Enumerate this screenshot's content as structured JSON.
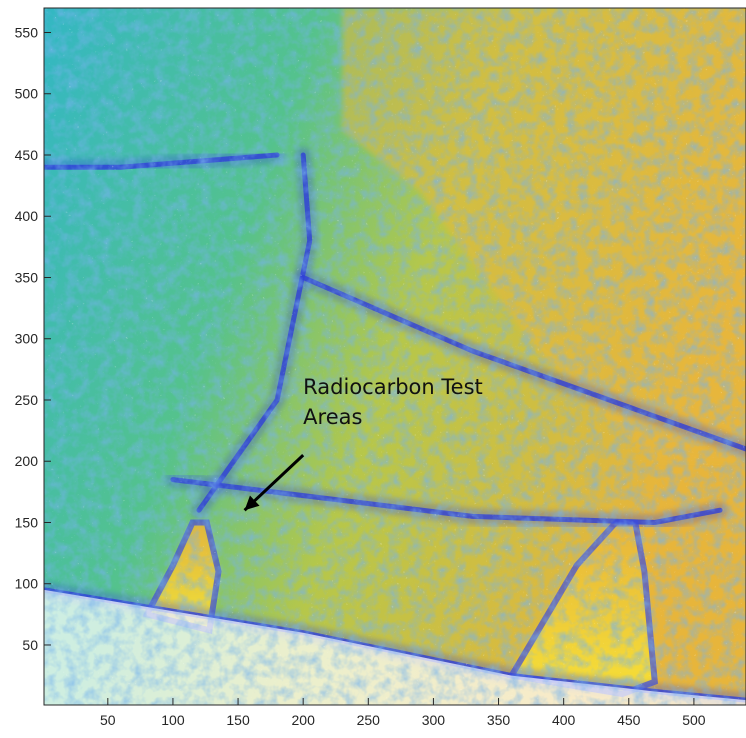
{
  "chart_data": {
    "type": "heatmap",
    "subtype": "contour",
    "title": "",
    "xlabel": "",
    "ylabel": "",
    "xlim": [
      1,
      540
    ],
    "ylim": [
      1,
      570
    ],
    "x_ticks": [
      50,
      100,
      150,
      200,
      250,
      300,
      350,
      400,
      450,
      500
    ],
    "y_ticks": [
      50,
      100,
      150,
      200,
      250,
      300,
      350,
      400,
      450,
      500,
      550
    ],
    "grid": false,
    "colormap": [
      "#3b3be0",
      "#2f7fe6",
      "#22b8c8",
      "#4cc48f",
      "#9ccc4a",
      "#e7b53b",
      "#f7e236"
    ],
    "regions": [
      {
        "name": "left-triangle",
        "level": "high",
        "polygon": [
          [
            80,
            75
          ],
          [
            128,
            62
          ],
          [
            135,
            110
          ],
          [
            126,
            150
          ],
          [
            115,
            150
          ],
          [
            100,
            115
          ]
        ]
      },
      {
        "name": "right-triangle",
        "level": "high",
        "polygon": [
          [
            360,
            25
          ],
          [
            445,
            10
          ],
          [
            470,
            20
          ],
          [
            462,
            110
          ],
          [
            455,
            150
          ],
          [
            440,
            150
          ],
          [
            410,
            115
          ]
        ]
      },
      {
        "name": "upper-right",
        "level": "medium-high",
        "polygon": [
          [
            230,
            570
          ],
          [
            540,
            570
          ],
          [
            540,
            200
          ],
          [
            470,
            200
          ],
          [
            380,
            290
          ],
          [
            290,
            420
          ],
          [
            230,
            470
          ]
        ]
      }
    ],
    "lines": [
      {
        "points": [
          [
            120,
            160
          ],
          [
            180,
            250
          ],
          [
            205,
            380
          ],
          [
            200,
            450
          ]
        ]
      },
      {
        "points": [
          [
            100,
            185
          ],
          [
            330,
            155
          ],
          [
            470,
            150
          ],
          [
            520,
            160
          ]
        ]
      },
      {
        "points": [
          [
            200,
            350
          ],
          [
            330,
            290
          ],
          [
            540,
            210
          ]
        ]
      },
      {
        "points": [
          [
            1,
            95
          ],
          [
            200,
            60
          ],
          [
            360,
            25
          ],
          [
            470,
            12
          ],
          [
            540,
            5
          ]
        ]
      },
      {
        "points": [
          [
            1,
            440
          ],
          [
            60,
            440
          ],
          [
            180,
            450
          ]
        ]
      }
    ],
    "annotations": [
      {
        "text_lines": [
          "Radiocarbon Test",
          "Areas"
        ],
        "text_x": 200,
        "text_y": 255,
        "arrow_from": [
          200,
          205
        ],
        "arrow_to": [
          155,
          160
        ]
      }
    ]
  }
}
